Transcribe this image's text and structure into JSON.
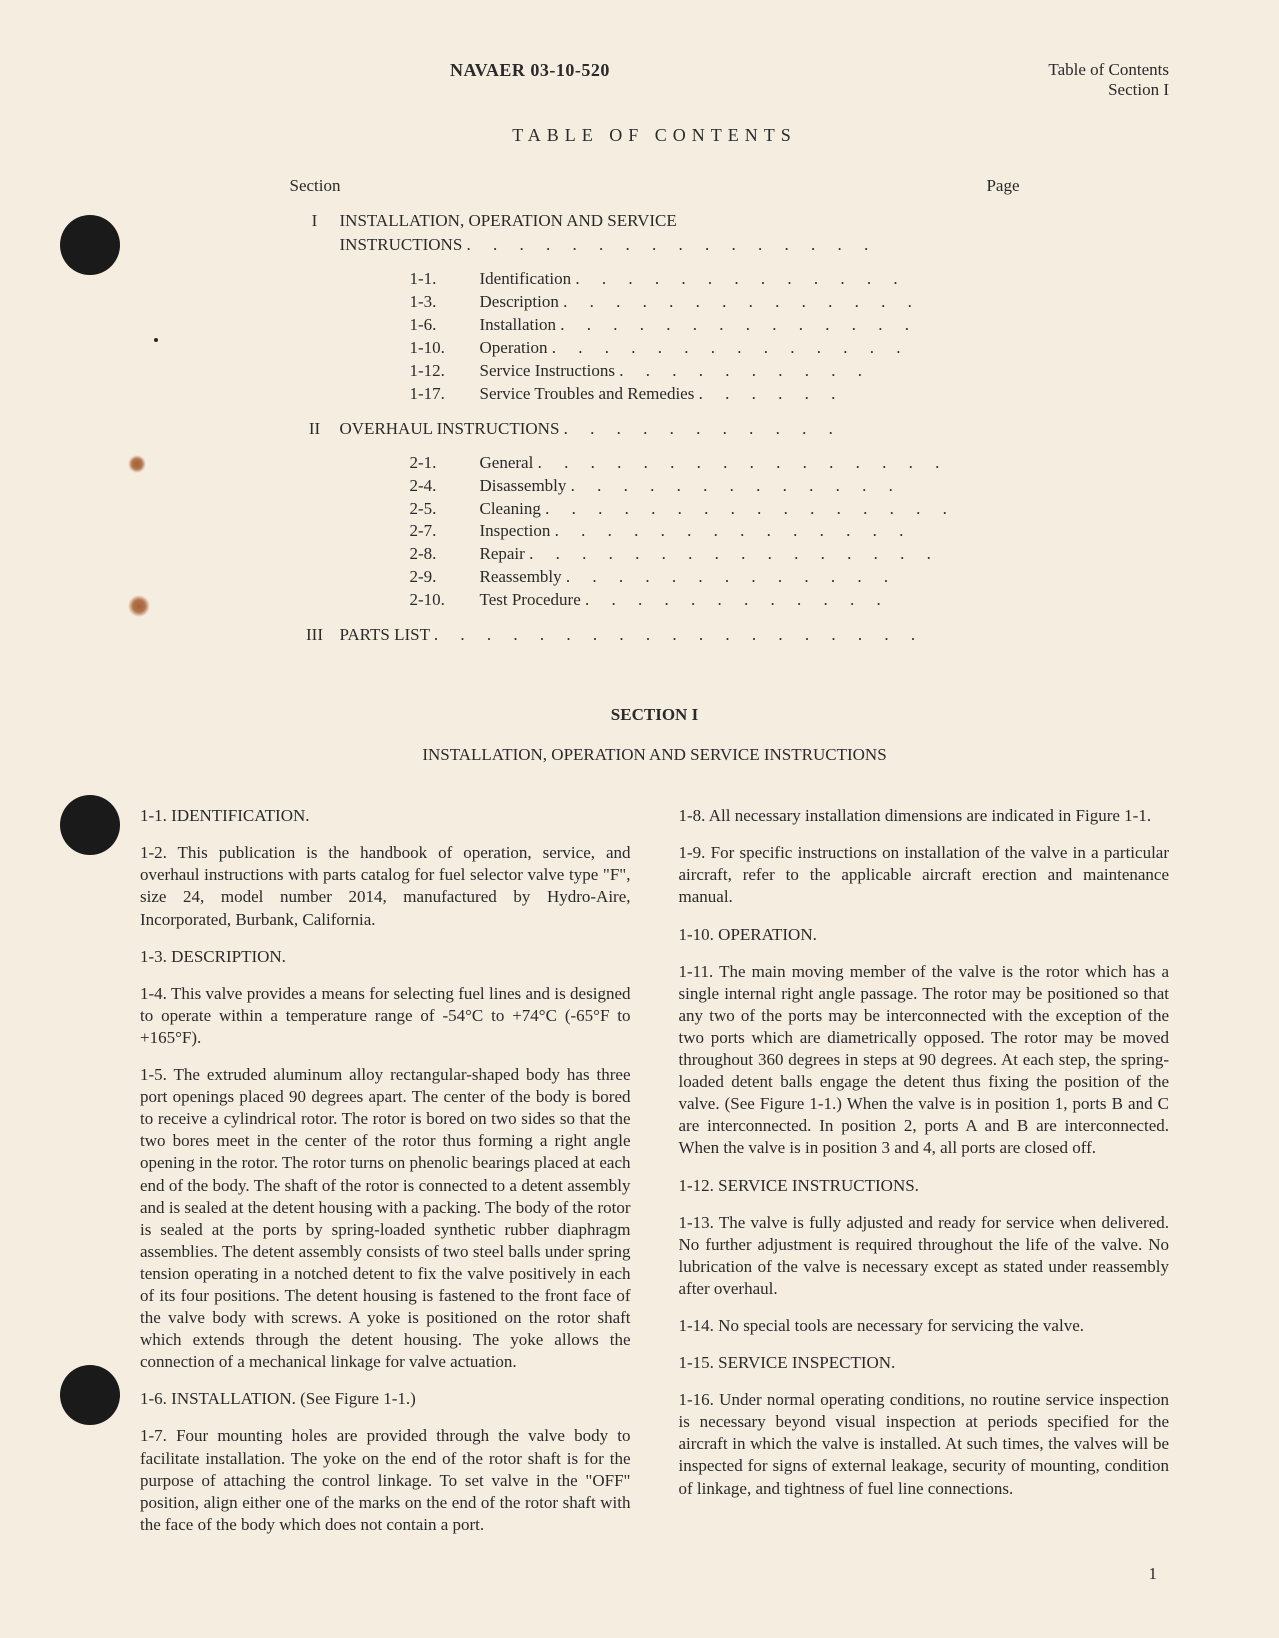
{
  "header": {
    "doc_id": "NAVAER 03-10-520",
    "right_line1": "Table of Contents",
    "right_line2": "Section I"
  },
  "toc": {
    "title": "TABLE OF CONTENTS",
    "header_left": "Section",
    "header_right": "Page",
    "sections": [
      {
        "roman": "I",
        "label": "INSTALLATION, OPERATION AND SERVICE",
        "label2": "INSTRUCTIONS",
        "dots2": ". . . . . . . . . . . . . . . .",
        "subs": [
          {
            "num": "1-1.",
            "label": "Identification",
            "dots": ". . . . . . . . . . . . ."
          },
          {
            "num": "1-3.",
            "label": "Description",
            "dots": ". . . . . . . . . . . . . ."
          },
          {
            "num": "1-6.",
            "label": "Installation",
            "dots": ". . . . . . . . . . . . . ."
          },
          {
            "num": "1-10.",
            "label": "Operation",
            "dots": ". . . . . . . . . . . . . ."
          },
          {
            "num": "1-12.",
            "label": "Service Instructions",
            "dots": ". . . . . . . . . ."
          },
          {
            "num": "1-17.",
            "label": "Service Troubles and Remedies",
            "dots": ". . . . . ."
          }
        ]
      },
      {
        "roman": "II",
        "label": "OVERHAUL INSTRUCTIONS",
        "dots": ". . . . . . . . . . .",
        "subs": [
          {
            "num": "2-1.",
            "label": "General",
            "dots": ". . . . . . . . . . . . . . . ."
          },
          {
            "num": "2-4.",
            "label": "Disassembly",
            "dots": ". . . . . . . . . . . . ."
          },
          {
            "num": "2-5.",
            "label": "Cleaning",
            "dots": ". . . . . . . . . . . . . . . ."
          },
          {
            "num": "2-7.",
            "label": "Inspection",
            "dots": ". . . . . . . . . . . . . ."
          },
          {
            "num": "2-8.",
            "label": "Repair",
            "dots": ". . . . . . . . . . . . . . . ."
          },
          {
            "num": "2-9.",
            "label": "Reassembly",
            "dots": ". . . . . . . . . . . . ."
          },
          {
            "num": "2-10.",
            "label": "Test Procedure",
            "dots": ". . . . . . . . . . . ."
          }
        ]
      },
      {
        "roman": "III",
        "label": "PARTS LIST",
        "dots": ". . . . . . . . . . . . . . . . . . ."
      }
    ]
  },
  "section": {
    "heading": "SECTION I",
    "subheading": "INSTALLATION, OPERATION AND SERVICE INSTRUCTIONS"
  },
  "left_col": {
    "h1": "1-1. IDENTIFICATION.",
    "p1": "1-2. This publication is the handbook of operation, service, and overhaul instructions with parts catalog for fuel selector valve type \"F\", size 24, model number 2014, manufactured by Hydro-Aire, Incorporated, Burbank, California.",
    "h2": "1-3. DESCRIPTION.",
    "p2": "1-4. This valve provides a means for selecting fuel lines and is designed to operate within a temperature range of -54°C to +74°C (-65°F to +165°F).",
    "p3": "1-5. The extruded aluminum alloy rectangular-shaped body has three port openings placed 90 degrees apart. The center of the body is bored to receive a cylindrical rotor. The rotor is bored on two sides so that the two bores meet in the center of the rotor thus forming a right angle opening in the rotor. The rotor turns on phenolic bearings placed at each end of the body. The shaft of the rotor is connected to a detent assembly and is sealed at the detent housing with a packing. The body of the rotor is sealed at the ports by spring-loaded synthetic rubber diaphragm assemblies. The detent assembly consists of two steel balls under spring tension operating in a notched detent to fix the valve positively in each of its four positions. The detent housing is fastened to the front face of the valve body with screws. A yoke is positioned on the rotor shaft which extends through the detent housing. The yoke allows the connection of a mechanical linkage for valve actuation.",
    "h3": "1-6. INSTALLATION. (See Figure 1-1.)",
    "p4": "1-7. Four mounting holes are provided through the valve body to facilitate installation. The yoke on the end of the rotor shaft is for the purpose of attaching the control linkage. To set valve in the \"OFF\" position, align either one of the marks on the end of the rotor shaft with the face of the body which does not contain a port."
  },
  "right_col": {
    "p1": "1-8. All necessary installation dimensions are indicated in Figure 1-1.",
    "p2": "1-9. For specific instructions on installation of the valve in a particular aircraft, refer to the applicable aircraft erection and maintenance manual.",
    "h1": "1-10. OPERATION.",
    "p3": "1-11. The main moving member of the valve is the rotor which has a single internal right angle passage. The rotor may be positioned so that any two of the ports may be interconnected with the exception of the two ports which are diametrically opposed. The rotor may be moved throughout 360 degrees in steps at 90 degrees. At each step, the spring-loaded detent balls engage the detent thus fixing the position of the valve. (See Figure 1-1.) When the valve is in position 1, ports B and C are interconnected. In position 2, ports A and B are interconnected. When the valve is in position 3 and 4, all ports are closed off.",
    "h2": "1-12. SERVICE INSTRUCTIONS.",
    "p4": "1-13. The valve is fully adjusted and ready for service when delivered. No further adjustment is required throughout the life of the valve. No lubrication of the valve is necessary except as stated under reassembly after overhaul.",
    "p5": "1-14. No special tools are necessary for servicing the valve.",
    "h3": "1-15. SERVICE INSPECTION.",
    "p6": "1-16. Under normal operating conditions, no routine service inspection is necessary beyond visual inspection at periods specified for the aircraft in which the valve is installed. At such times, the valves will be inspected for signs of external leakage, security of mounting, condition of linkage, and tightness of fuel line connections."
  },
  "page_number": "1"
}
